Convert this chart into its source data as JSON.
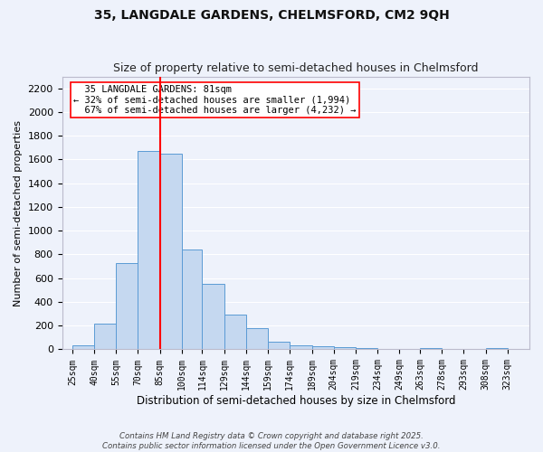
{
  "title1": "35, LANGDALE GARDENS, CHELMSFORD, CM2 9QH",
  "title2": "Size of property relative to semi-detached houses in Chelmsford",
  "xlabel": "Distribution of semi-detached houses by size in Chelmsford",
  "ylabel": "Number of semi-detached properties",
  "bar_left_edges": [
    25,
    40,
    55,
    70,
    85,
    100,
    114,
    129,
    144,
    159,
    174,
    189,
    204,
    219,
    234,
    249,
    263,
    278,
    293,
    308
  ],
  "bar_widths": [
    15,
    15,
    15,
    15,
    15,
    14,
    15,
    15,
    15,
    15,
    15,
    15,
    15,
    15,
    15,
    14,
    15,
    15,
    15,
    15
  ],
  "bar_heights": [
    35,
    220,
    730,
    1670,
    1650,
    840,
    555,
    295,
    180,
    65,
    35,
    30,
    20,
    15,
    5,
    0,
    10,
    0,
    0,
    10
  ],
  "bar_color": "#c5d8f0",
  "bar_edge_color": "#5b9bd5",
  "vline_x": 85,
  "vline_color": "red",
  "annotation_text": "  35 LANGDALE GARDENS: 81sqm  \n← 32% of semi-detached houses are smaller (1,994)\n  67% of semi-detached houses are larger (4,232) →",
  "ylim": [
    0,
    2300
  ],
  "yticks": [
    0,
    200,
    400,
    600,
    800,
    1000,
    1200,
    1400,
    1600,
    1800,
    2000,
    2200
  ],
  "tick_labels": [
    "25sqm",
    "40sqm",
    "55sqm",
    "70sqm",
    "85sqm",
    "100sqm",
    "114sqm",
    "129sqm",
    "144sqm",
    "159sqm",
    "174sqm",
    "189sqm",
    "204sqm",
    "219sqm",
    "234sqm",
    "249sqm",
    "263sqm",
    "278sqm",
    "293sqm",
    "308sqm",
    "323sqm"
  ],
  "tick_positions": [
    25,
    40,
    55,
    70,
    85,
    100,
    114,
    129,
    144,
    159,
    174,
    189,
    204,
    219,
    234,
    249,
    263,
    278,
    293,
    308,
    323
  ],
  "background_color": "#eef2fb",
  "grid_color": "#ffffff",
  "footnote": "Contains HM Land Registry data © Crown copyright and database right 2025.\nContains public sector information licensed under the Open Government Licence v3.0."
}
